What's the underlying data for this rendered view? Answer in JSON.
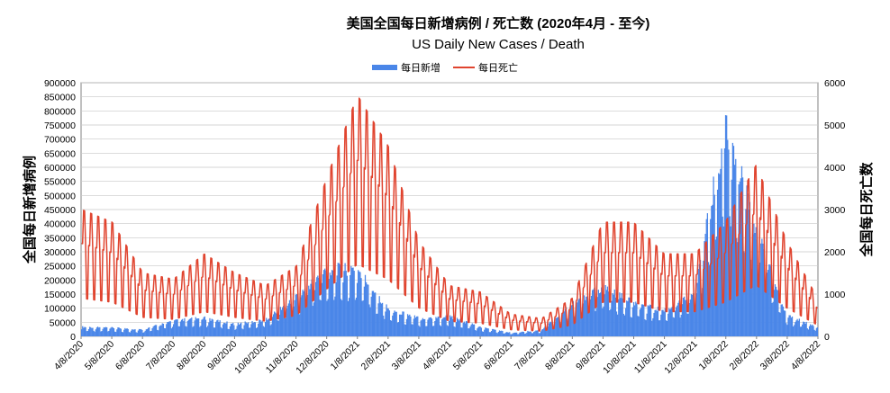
{
  "chart_data": {
    "type": "bar+line",
    "title": "美国全国每日新增病例 / 死亡数 (2020年4月 - 至今)",
    "subtitle": "US Daily New Cases / Death",
    "ylabel_left": "全国每日新增病例",
    "ylabel_right": "全国每日死亡数",
    "ylim_left": [
      0,
      900000
    ],
    "ylim_right": [
      0,
      6000
    ],
    "left_ticks": [
      "0",
      "50000",
      "100000",
      "150000",
      "200000",
      "250000",
      "300000",
      "350000",
      "400000",
      "450000",
      "500000",
      "550000",
      "600000",
      "650000",
      "700000",
      "750000",
      "800000",
      "850000",
      "900000"
    ],
    "right_ticks": [
      "0",
      "1000",
      "2000",
      "3000",
      "4000",
      "5000",
      "6000"
    ],
    "x_tick_labels": [
      "4/8/2020",
      "5/8/2020",
      "6/8/2020",
      "7/8/2020",
      "8/8/2020",
      "9/8/2020",
      "10/8/2020",
      "11/8/2020",
      "12/8/2020",
      "1/8/2021",
      "2/8/2021",
      "3/8/2021",
      "4/8/2021",
      "5/8/2021",
      "6/8/2021",
      "7/8/2021",
      "8/8/2021",
      "9/8/2021",
      "10/8/2021",
      "11/8/2021",
      "12/8/2021",
      "1/8/2022",
      "2/8/2022",
      "3/8/2022",
      "4/8/2022"
    ],
    "legend": [
      {
        "name": "每日新增",
        "color": "#4a86e8",
        "kind": "bar"
      },
      {
        "name": "每日死亡",
        "color": "#e0442f",
        "kind": "line"
      }
    ],
    "position": "top-center",
    "series_cases_monthly_approx": {
      "name": "每日新增",
      "values": [
        31000,
        28000,
        22000,
        52000,
        60000,
        40000,
        55000,
        130000,
        220000,
        220000,
        90000,
        60000,
        65000,
        30000,
        12000,
        20000,
        110000,
        160000,
        110000,
        85000,
        140000,
        700000,
        350000,
        70000,
        30000
      ]
    },
    "series_deaths_monthly_approx": {
      "name": "每日死亡",
      "values": [
        2000,
        1800,
        1000,
        900,
        1300,
        1000,
        800,
        1100,
        2500,
        3800,
        3000,
        1500,
        800,
        700,
        350,
        280,
        600,
        1800,
        1800,
        1300,
        1300,
        1800,
        2700,
        1500,
        600
      ]
    }
  }
}
